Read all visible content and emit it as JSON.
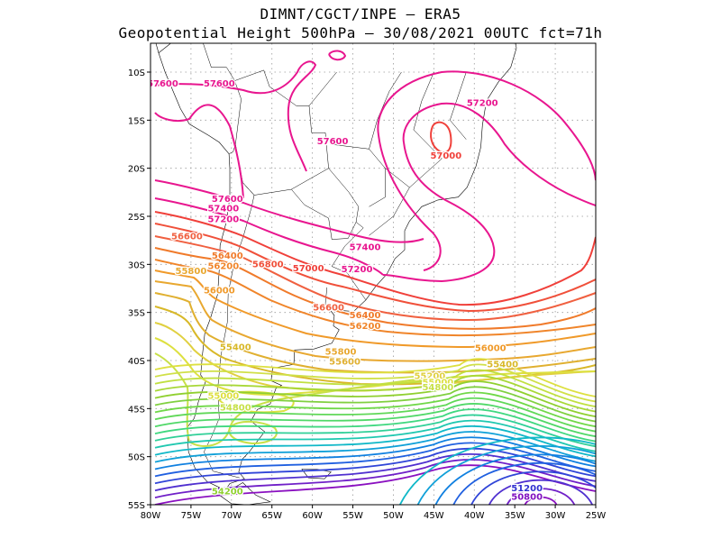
{
  "header": {
    "title_line1": "DIMNT/CGCT/INPE –  ERA5",
    "title_line2": "Geopotential Height 500hPa –  30/08/2021 00UTC fct=71h"
  },
  "axes": {
    "lat_labels": [
      "10S",
      "15S",
      "20S",
      "25S",
      "30S",
      "35S",
      "40S",
      "45S",
      "50S",
      "55S"
    ],
    "lon_labels": [
      "80W",
      "75W",
      "70W",
      "65W",
      "60W",
      "55W",
      "50W",
      "45W",
      "40W",
      "35W",
      "30W",
      "25W"
    ],
    "lat_range": [
      -55,
      -7
    ],
    "lon_range": [
      -80,
      -25
    ]
  },
  "colors": {
    "c57600": "#e8168f",
    "c57400": "#e8168f",
    "c57200": "#e8168f",
    "c57000": "#f0403a",
    "c56800": "#f0503a",
    "c56600": "#f06040",
    "c56400": "#f07a2a",
    "c56200": "#f0852a",
    "c56000": "#f09a2a",
    "c55800": "#e8a830",
    "c55600": "#e0b030",
    "c55400": "#d8b828",
    "c55200": "#e0d040",
    "c55000": "#dde040",
    "c54800": "#c8e048",
    "c54200": "#90d030",
    "c51200": "#3030d0",
    "c50800": "#8010c0"
  },
  "contour_labels": [
    {
      "text": "57600",
      "lon": -78.5,
      "lat": -11.5,
      "color": "c57600"
    },
    {
      "text": "57600",
      "lon": -71.5,
      "lat": -11.5,
      "color": "c57600"
    },
    {
      "text": "57600",
      "lon": -57.5,
      "lat": -17.5,
      "color": "c57600"
    },
    {
      "text": "57600",
      "lon": -70.5,
      "lat": -23.5,
      "color": "c57600"
    },
    {
      "text": "57400",
      "lon": -71.0,
      "lat": -24.5,
      "color": "c57400"
    },
    {
      "text": "57200",
      "lon": -71.0,
      "lat": -25.6,
      "color": "c57200"
    },
    {
      "text": "57200",
      "lon": -39.0,
      "lat": -13.5,
      "color": "c57200"
    },
    {
      "text": "57000",
      "lon": -43.5,
      "lat": -19.0,
      "color": "c57000"
    },
    {
      "text": "57400",
      "lon": -53.5,
      "lat": -28.5,
      "color": "c57400"
    },
    {
      "text": "57200",
      "lon": -54.5,
      "lat": -30.8,
      "color": "c57200"
    },
    {
      "text": "57000",
      "lon": -60.5,
      "lat": -30.7,
      "color": "c57000"
    },
    {
      "text": "56800",
      "lon": -65.5,
      "lat": -30.3,
      "color": "c56800"
    },
    {
      "text": "56600",
      "lon": -75.5,
      "lat": -27.4,
      "color": "c56600"
    },
    {
      "text": "56400",
      "lon": -70.5,
      "lat": -29.4,
      "color": "c56400"
    },
    {
      "text": "56200",
      "lon": -71.0,
      "lat": -30.5,
      "color": "c56200"
    },
    {
      "text": "55800",
      "lon": -75.0,
      "lat": -31.0,
      "color": "c55800"
    },
    {
      "text": "56000",
      "lon": -71.5,
      "lat": -33.0,
      "color": "c56000"
    },
    {
      "text": "56600",
      "lon": -58.0,
      "lat": -34.8,
      "color": "c56600"
    },
    {
      "text": "56400",
      "lon": -53.5,
      "lat": -35.6,
      "color": "c56400"
    },
    {
      "text": "56200",
      "lon": -53.5,
      "lat": -36.7,
      "color": "c56200"
    },
    {
      "text": "56000",
      "lon": -38.0,
      "lat": -39.0,
      "color": "c56000"
    },
    {
      "text": "55400",
      "lon": -69.5,
      "lat": -38.9,
      "color": "c55400"
    },
    {
      "text": "55800",
      "lon": -56.5,
      "lat": -39.4,
      "color": "c55800"
    },
    {
      "text": "55600",
      "lon": -56.0,
      "lat": -40.4,
      "color": "c55600"
    },
    {
      "text": "55400",
      "lon": -36.5,
      "lat": -40.7,
      "color": "c55400"
    },
    {
      "text": "55200",
      "lon": -45.5,
      "lat": -41.9,
      "color": "c55200"
    },
    {
      "text": "55000",
      "lon": -44.5,
      "lat": -42.6,
      "color": "c55000"
    },
    {
      "text": "54800",
      "lon": -44.5,
      "lat": -43.1,
      "color": "c54800"
    },
    {
      "text": "55000",
      "lon": -71.0,
      "lat": -44.0,
      "color": "c55000"
    },
    {
      "text": "54800",
      "lon": -69.5,
      "lat": -45.2,
      "color": "c54800"
    },
    {
      "text": "54200",
      "lon": -70.5,
      "lat": -53.9,
      "color": "c54200"
    },
    {
      "text": "51200",
      "lon": -33.5,
      "lat": -53.6,
      "color": "c51200"
    },
    {
      "text": "50800",
      "lon": -33.5,
      "lat": -54.5,
      "color": "c50800"
    }
  ]
}
